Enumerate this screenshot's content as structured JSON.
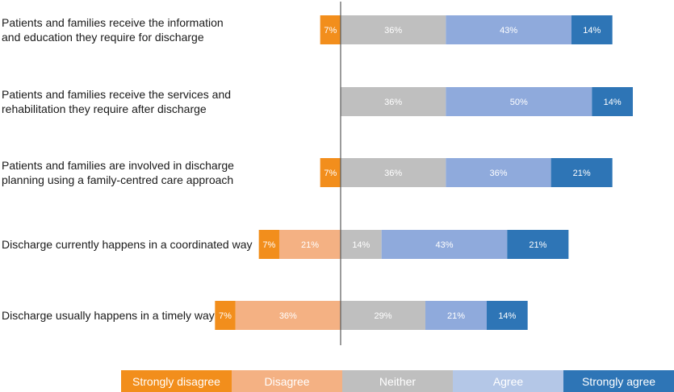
{
  "chart_data": {
    "type": "bar",
    "orientation": "horizontal",
    "stacked": "diverging",
    "categories": [
      [
        "Patients and families receive the information",
        "and education they require for discharge"
      ],
      [
        "Patients and families receive the services and",
        "rehabilitation they require after discharge"
      ],
      [
        "Patients and families are involved in discharge",
        "planning using a family-centred care approach"
      ],
      [
        "Discharge currently happens in a coordinated way"
      ],
      [
        "Discharge usually happens in a timely way"
      ]
    ],
    "series": [
      {
        "name": "Strongly disagree",
        "color": "#f28e1c",
        "values": [
          7,
          0,
          7,
          7,
          7
        ],
        "labels": [
          "7%",
          "",
          "7%",
          "7%",
          "7%"
        ]
      },
      {
        "name": "Disagree",
        "color": "#f4b183",
        "values": [
          0,
          0,
          0,
          21,
          36
        ],
        "labels": [
          "",
          "",
          "",
          "21%",
          "36%"
        ]
      },
      {
        "name": "Neither",
        "color": "#bfbfbf",
        "values": [
          36,
          36,
          36,
          14,
          29
        ],
        "labels": [
          "36%",
          "36%",
          "36%",
          "14%",
          "29%"
        ]
      },
      {
        "name": "Agree",
        "color": "#8faadc",
        "values": [
          43,
          50,
          36,
          43,
          21
        ],
        "labels": [
          "43%",
          "50%",
          "36%",
          "43%",
          "21%"
        ]
      },
      {
        "name": "Strongly agree",
        "color": "#2e75b6",
        "values": [
          14,
          14,
          21,
          21,
          14
        ],
        "labels": [
          "14%",
          "14%",
          "21%",
          "21%",
          "14%"
        ]
      }
    ],
    "legend": {
      "position": "bottom",
      "items": [
        {
          "label": "Strongly disagree",
          "color": "#f28e1c"
        },
        {
          "label": "Disagree",
          "color": "#f4b183"
        },
        {
          "label": "Neither",
          "color": "#bfbfbf"
        },
        {
          "label": "Agree",
          "color": "#b4c7e7"
        },
        {
          "label": "Strongly agree",
          "color": "#2e75b6"
        }
      ]
    },
    "xlim": [
      -50,
      100
    ]
  }
}
